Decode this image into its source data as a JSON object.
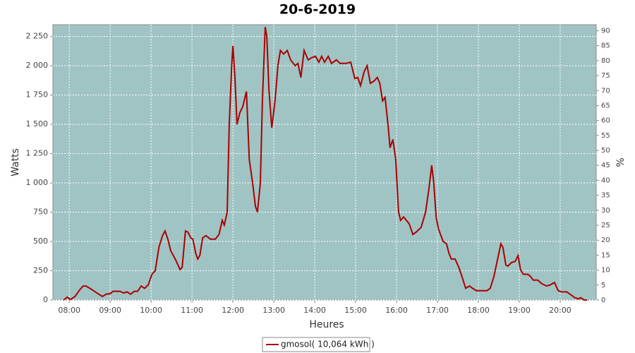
{
  "chart_data": {
    "type": "line",
    "title": "20-6-2019",
    "x_label": "Heures",
    "y_label": "Watts",
    "y2_label": "%",
    "xlim": [
      7.6,
      20.88
    ],
    "ylim": [
      0,
      2350
    ],
    "y2lim": [
      0,
      92
    ],
    "xticks": [
      {
        "value": 8,
        "label": "08:00"
      },
      {
        "value": 9,
        "label": "09:00"
      },
      {
        "value": 10,
        "label": "10:00"
      },
      {
        "value": 11,
        "label": "11:00"
      },
      {
        "value": 12,
        "label": "12:00"
      },
      {
        "value": 13,
        "label": "13:00"
      },
      {
        "value": 14,
        "label": "14:00"
      },
      {
        "value": 15,
        "label": "15:00"
      },
      {
        "value": 16,
        "label": "16:00"
      },
      {
        "value": 17,
        "label": "17:00"
      },
      {
        "value": 18,
        "label": "18:00"
      },
      {
        "value": 19,
        "label": "19:00"
      },
      {
        "value": 20,
        "label": "20:00"
      }
    ],
    "yticks": [
      0,
      250,
      500,
      750,
      {
        "value": 1000,
        "label": "1 000"
      },
      {
        "value": 1250,
        "label": "1 250"
      },
      {
        "value": 1500,
        "label": "1 500"
      },
      {
        "value": 1750,
        "label": "1 750"
      },
      {
        "value": 2000,
        "label": "2 000"
      },
      {
        "value": 2250,
        "label": "2 250"
      }
    ],
    "y2ticks": [
      0,
      5,
      10,
      15,
      20,
      25,
      30,
      35,
      40,
      45,
      50,
      55,
      60,
      65,
      70,
      75,
      80,
      85,
      90
    ],
    "grid": true,
    "background": "#a0c4c4",
    "legend": "bottom",
    "x": [
      7.86,
      7.95,
      8.03,
      8.14,
      8.26,
      8.34,
      8.41,
      8.55,
      8.72,
      8.81,
      8.9,
      9.0,
      9.07,
      9.24,
      9.33,
      9.41,
      9.5,
      9.59,
      9.67,
      9.76,
      9.84,
      9.93,
      10.02,
      10.1,
      10.19,
      10.28,
      10.34,
      10.41,
      10.48,
      10.59,
      10.71,
      10.76,
      10.84,
      10.9,
      10.97,
      11.02,
      11.09,
      11.14,
      11.19,
      11.26,
      11.34,
      11.45,
      11.57,
      11.66,
      11.74,
      11.79,
      11.86,
      11.91,
      11.97,
      12.0,
      12.05,
      12.1,
      12.17,
      12.24,
      12.33,
      12.4,
      12.48,
      12.55,
      12.6,
      12.67,
      12.72,
      12.79,
      12.83,
      12.88,
      12.95,
      13.03,
      13.1,
      13.16,
      13.24,
      13.33,
      13.41,
      13.52,
      13.59,
      13.66,
      13.74,
      13.84,
      13.93,
      14.02,
      14.1,
      14.17,
      14.24,
      14.33,
      14.41,
      14.53,
      14.62,
      14.76,
      14.88,
      14.98,
      15.05,
      15.12,
      15.21,
      15.28,
      15.36,
      15.45,
      15.53,
      15.59,
      15.66,
      15.72,
      15.79,
      15.84,
      15.91,
      15.98,
      16.05,
      16.1,
      16.17,
      16.24,
      16.31,
      16.4,
      16.48,
      16.6,
      16.71,
      16.79,
      16.86,
      16.91,
      16.97,
      17.03,
      17.14,
      17.22,
      17.28,
      17.34,
      17.43,
      17.52,
      17.6,
      17.69,
      17.78,
      17.86,
      17.95,
      18.03,
      18.21,
      18.29,
      18.38,
      18.47,
      18.55,
      18.6,
      18.67,
      18.72,
      18.81,
      18.9,
      18.97,
      19.03,
      19.1,
      19.21,
      19.28,
      19.34,
      19.45,
      19.55,
      19.67,
      19.76,
      19.86,
      19.95,
      20.03,
      20.16,
      20.24,
      20.36,
      20.45,
      20.5,
      20.59,
      20.66
    ],
    "series": [
      {
        "name": "gmosol( 10,064 kWh )",
        "color": "#aa0000",
        "values": [
          0,
          25,
          5,
          30,
          90,
          120,
          120,
          90,
          50,
          30,
          50,
          55,
          75,
          75,
          60,
          70,
          50,
          75,
          75,
          120,
          100,
          130,
          220,
          250,
          450,
          550,
          590,
          520,
          420,
          350,
          260,
          280,
          590,
          580,
          530,
          520,
          400,
          350,
          380,
          530,
          550,
          520,
          520,
          560,
          680,
          640,
          750,
          1500,
          2000,
          2170,
          1900,
          1500,
          1600,
          1650,
          1780,
          1200,
          1000,
          800,
          750,
          1000,
          1700,
          2330,
          2250,
          1800,
          1470,
          1700,
          2000,
          2130,
          2100,
          2130,
          2050,
          2000,
          2020,
          1900,
          2130,
          2050,
          2070,
          2080,
          2030,
          2080,
          2030,
          2080,
          2020,
          2050,
          2020,
          2020,
          2030,
          1890,
          1900,
          1830,
          1950,
          2000,
          1850,
          1870,
          1900,
          1850,
          1700,
          1730,
          1500,
          1300,
          1370,
          1200,
          750,
          680,
          710,
          680,
          650,
          560,
          580,
          620,
          750,
          950,
          1150,
          1000,
          700,
          600,
          500,
          480,
          400,
          350,
          350,
          280,
          200,
          100,
          120,
          100,
          80,
          80,
          80,
          100,
          200,
          350,
          480,
          450,
          300,
          290,
          320,
          330,
          380,
          260,
          220,
          220,
          200,
          170,
          170,
          140,
          120,
          130,
          150,
          80,
          70,
          70,
          50,
          20,
          10,
          20,
          0,
          0
        ]
      }
    ]
  }
}
